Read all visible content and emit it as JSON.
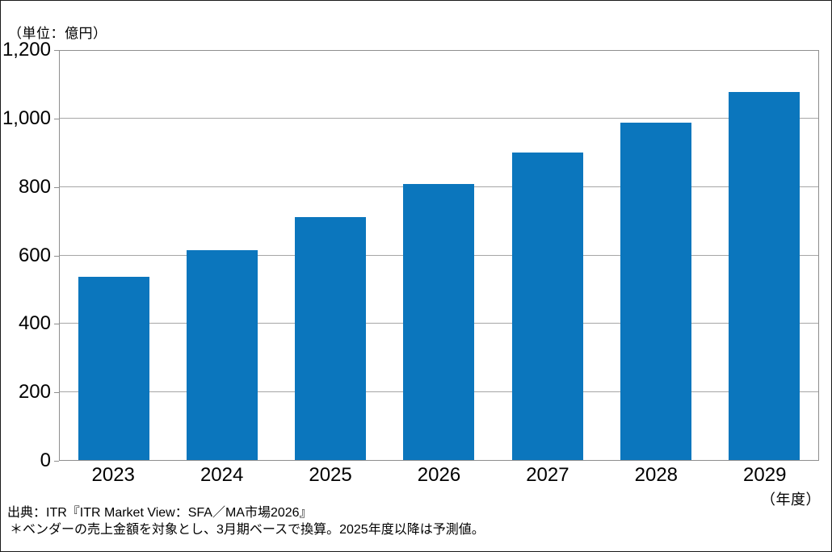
{
  "chart": {
    "unit_label": "（単位：億円）",
    "x_axis_suffix": "（年度）",
    "source_line": "出典：ITR『ITR Market View：SFA／MA市場2026』",
    "note_line": "＊ベンダーの売上金額を対象とし、3月期ベースで換算。2025年度以降は予測値。"
  },
  "chart_data": {
    "type": "bar",
    "categories": [
      "2023",
      "2024",
      "2025",
      "2026",
      "2027",
      "2028",
      "2029"
    ],
    "values": [
      535,
      614,
      710,
      807,
      898,
      985,
      1075
    ],
    "title": "",
    "xlabel": "（年度）",
    "ylabel": "（単位：億円）",
    "ylim": [
      0,
      1200
    ],
    "ytick_step": 200,
    "ytick_labels": [
      "0",
      "200",
      "400",
      "600",
      "800",
      "1,000",
      "1,200"
    ],
    "grid": "horizontal",
    "legend": "none",
    "bar_color": "#0b76bd",
    "gridline_color": "#a6a6a6",
    "frame_color": "#8e8e8e",
    "text_color": "#000000"
  }
}
